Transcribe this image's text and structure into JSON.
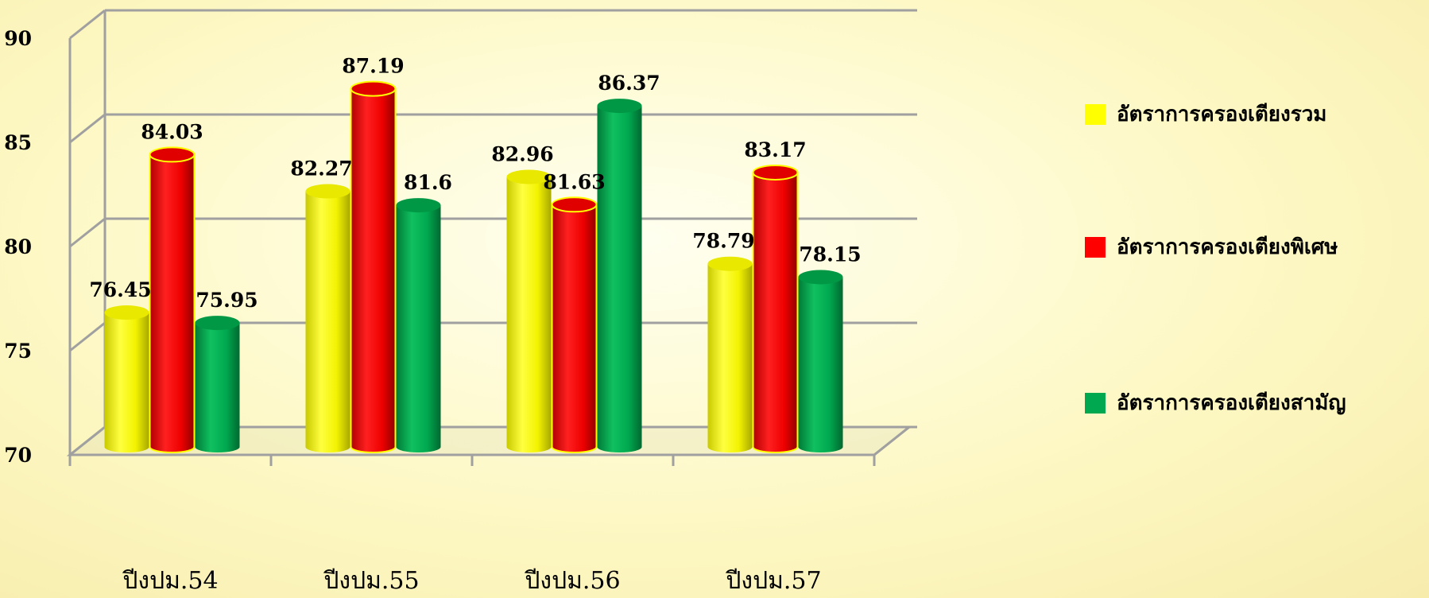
{
  "chart_data": {
    "type": "bar",
    "categories": [
      "ปีงปม.54",
      "ปีงปม.55",
      "ปีงปม.56",
      "ปีงปม.57"
    ],
    "series": [
      {
        "name": "อัตราการครองเตียงรวม",
        "color": "#ffff00",
        "values": [
          76.45,
          82.27,
          82.96,
          78.79
        ]
      },
      {
        "name": "อัตราการครองเตียงพิเศษ",
        "color": "#ff0000",
        "values": [
          84.03,
          87.19,
          81.63,
          83.17
        ]
      },
      {
        "name": "อัตราการครองเตียงสามัญ",
        "color": "#00a84f",
        "values": [
          75.95,
          81.6,
          86.37,
          78.15
        ]
      }
    ],
    "yticks": [
      70,
      75,
      80,
      85,
      90
    ],
    "ylim": [
      70,
      90
    ],
    "grid": true,
    "legend_position": "right",
    "title": "",
    "xlabel": "",
    "ylabel": ""
  }
}
